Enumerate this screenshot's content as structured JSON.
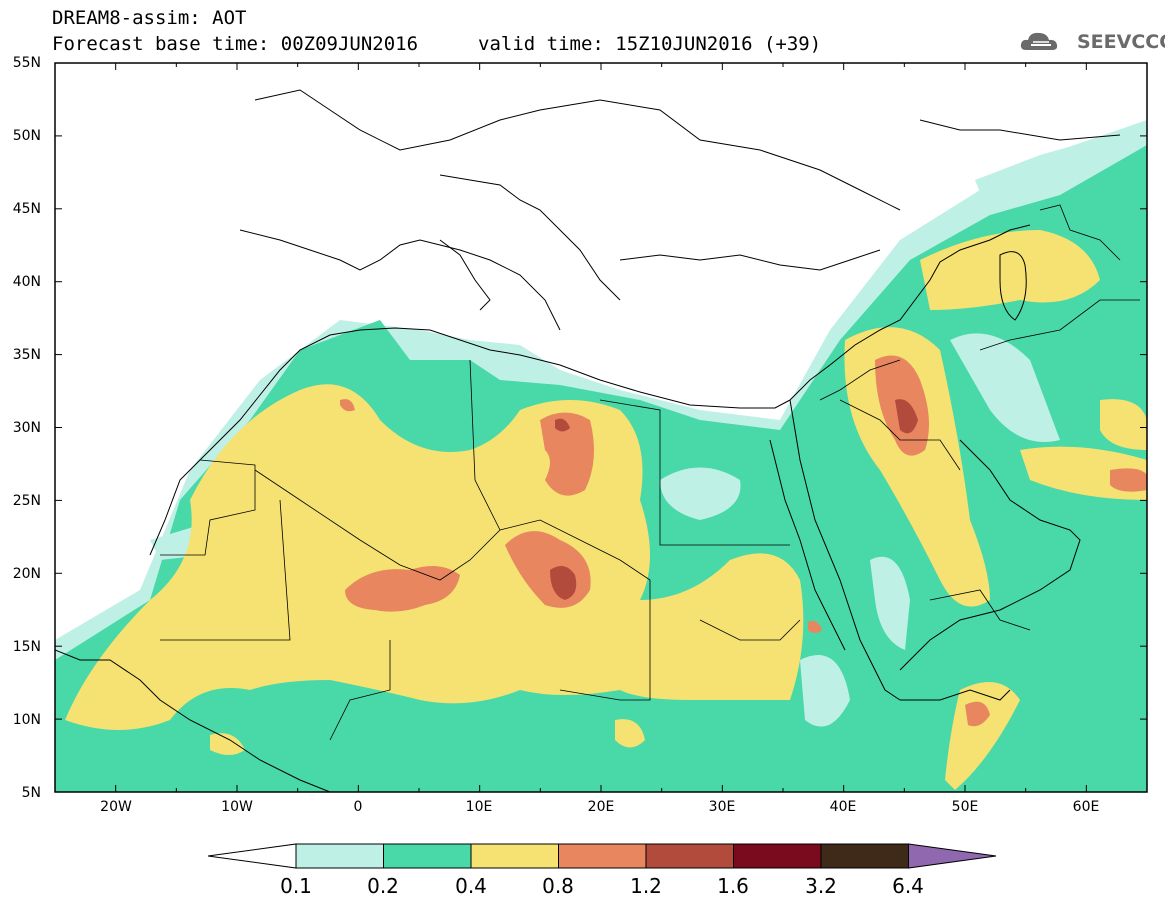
{
  "header": {
    "title": "DREAM8-assim: AOT",
    "base_time": "Forecast base time: 00Z09JUN2016",
    "valid_time": "valid time: 15Z10JUN2016 (+39)",
    "logo_text": "SEEVCCC",
    "logo_icon": "cloud-icon"
  },
  "axes": {
    "lat_labels": [
      "55N",
      "50N",
      "45N",
      "40N",
      "35N",
      "30N",
      "25N",
      "20N",
      "15N",
      "10N",
      "5N"
    ],
    "lon_labels": [
      "20W",
      "10W",
      "0",
      "10E",
      "20E",
      "30E",
      "40E",
      "50E",
      "60E"
    ],
    "lon_range": [
      -25,
      65
    ],
    "lat_range": [
      5,
      55
    ]
  },
  "colorbar": {
    "labels": [
      "0.1",
      "0.2",
      "0.4",
      "0.8",
      "1.2",
      "1.6",
      "3.2",
      "6.4"
    ],
    "colors": [
      "#ffffff",
      "#bff0e6",
      "#49d8a8",
      "#f5e272",
      "#e8865f",
      "#b34b3c",
      "#7a0a1e",
      "#3f2a1a",
      "#8f68b0"
    ]
  },
  "map_colors": {
    "land_outline": "#000000",
    "background": "#ffffff"
  }
}
